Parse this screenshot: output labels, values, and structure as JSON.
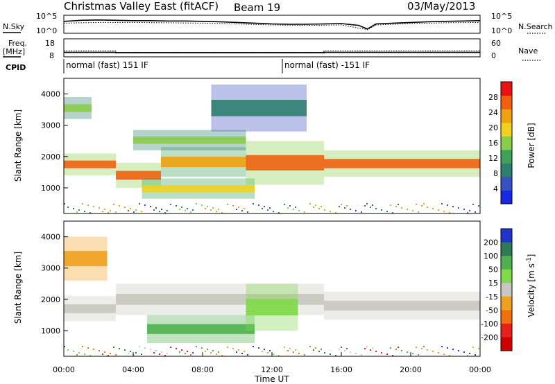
{
  "header": {
    "station": "Christmas Valley East (fitACF)",
    "beam": "Beam 19",
    "date": "03/May/2013"
  },
  "chart_data": [
    {
      "type": "line",
      "panel": "noise",
      "left_label": "N.Sky",
      "right_label": "N.Search",
      "left_ticks": [
        "10^5",
        "10^0"
      ],
      "right_ticks": [
        "10^5",
        "10^0"
      ],
      "series": [
        {
          "name": "N.Sky",
          "style": "solid",
          "x": [
            0,
            1,
            2,
            3,
            4,
            5,
            6,
            7,
            8,
            9,
            10,
            11,
            12,
            13,
            14,
            15,
            16,
            17,
            17.5,
            18,
            19,
            20,
            21,
            22,
            23,
            24
          ],
          "y": [
            3.3,
            3.6,
            3.7,
            3.6,
            3.5,
            3.5,
            3.4,
            3.4,
            3.3,
            3.2,
            3.0,
            2.8,
            2.6,
            2.5,
            2.5,
            2.6,
            2.7,
            2.2,
            1.2,
            2.6,
            2.8,
            3.0,
            3.2,
            3.3,
            3.4,
            3.5
          ]
        },
        {
          "name": "N.Search",
          "style": "dotted",
          "x": [
            0,
            2,
            4,
            6,
            8,
            10,
            12,
            14,
            16,
            17.5,
            18,
            20,
            22,
            24
          ],
          "y": [
            2.8,
            3.0,
            3.0,
            2.9,
            2.8,
            2.6,
            2.3,
            2.2,
            2.3,
            1.0,
            2.3,
            2.7,
            2.9,
            3.0
          ]
        }
      ]
    },
    {
      "type": "line",
      "panel": "frequency",
      "left_label": "Freq. [MHz]",
      "right_label": "Nave",
      "left_ticks": [
        18,
        8
      ],
      "right_ticks": [
        60,
        0
      ],
      "series": [
        {
          "name": "Freq",
          "style": "solid",
          "x": [
            0,
            3.0,
            3.0,
            15.0,
            15.0,
            24.0
          ],
          "y": [
            10.5,
            10.5,
            10.3,
            10.3,
            10.5,
            10.5
          ]
        },
        {
          "name": "Nave",
          "style": "dotted",
          "x": [
            0,
            3.0,
            3.0,
            15.0,
            15.0,
            24.0
          ],
          "y": [
            20,
            20,
            15,
            15,
            20,
            20
          ]
        }
      ]
    },
    {
      "type": "table",
      "panel": "cpid",
      "label": "CPID",
      "segments": [
        {
          "text": "normal (fast) 151 IF",
          "start": 0.0,
          "end": 12.6
        },
        {
          "text": "normal (fast) -151 IF",
          "start": 12.6,
          "end": 24.0
        }
      ]
    },
    {
      "type": "heatmap",
      "panel": "power",
      "ylabel": "Slant Range [km]",
      "ylim": [
        180,
        4500
      ],
      "yticks": [
        1000,
        2000,
        3000,
        4000
      ],
      "colorbar": {
        "label": "Power [dB]",
        "range": [
          0,
          32
        ],
        "ticks": [
          4,
          8,
          12,
          16,
          20,
          24,
          28
        ]
      },
      "echo_bands": [
        {
          "t": [
            0,
            3.0
          ],
          "r": [
            1400,
            2100
          ],
          "p": 28
        },
        {
          "t": [
            3.0,
            5.6
          ],
          "r": [
            1000,
            1800
          ],
          "p": 28
        },
        {
          "t": [
            5.6,
            10.5
          ],
          "r": [
            1350,
            2300
          ],
          "p": 22
        },
        {
          "t": [
            4.5,
            11.0
          ],
          "r": [
            650,
            1300
          ],
          "p": 20
        },
        {
          "t": [
            4.0,
            10.5
          ],
          "r": [
            2200,
            2850
          ],
          "p": 15
        },
        {
          "t": [
            10.5,
            15.0
          ],
          "r": [
            1100,
            2500
          ],
          "p": 27
        },
        {
          "t": [
            15.0,
            24.0
          ],
          "r": [
            1350,
            2200
          ],
          "p": 26
        },
        {
          "t": [
            0,
            1.6
          ],
          "r": [
            3200,
            3900
          ],
          "p": 16
        },
        {
          "t": [
            8.5,
            14.0
          ],
          "r": [
            2800,
            4300
          ],
          "p": 8
        }
      ]
    },
    {
      "type": "heatmap",
      "panel": "velocity",
      "ylabel": "Slant Range [km]",
      "xlabel": "Time UT",
      "ylim": [
        180,
        4500
      ],
      "yticks": [
        1000,
        2000,
        3000,
        4000
      ],
      "xticks": [
        "00:00",
        "04:00",
        "08:00",
        "12:00",
        "16:00",
        "20:00",
        "00:00"
      ],
      "xlim": [
        0,
        24
      ],
      "colorbar": {
        "label": "Velocity [m s^-1]",
        "ticks": [
          200,
          100,
          50,
          15,
          -15,
          -50,
          -100,
          -200
        ],
        "colors": [
          "#2233cc",
          "#2f7a55",
          "#4fb04f",
          "#80d84a",
          "#c8c8c0",
          "#f0a020",
          "#f07010",
          "#e8201c",
          "#d00000"
        ]
      },
      "echo_bands": [
        {
          "t": [
            0,
            3.0
          ],
          "r": [
            1300,
            2100
          ],
          "v": 0
        },
        {
          "t": [
            3.0,
            15.0
          ],
          "r": [
            1500,
            2500
          ],
          "v": 0
        },
        {
          "t": [
            4.8,
            11.0
          ],
          "r": [
            600,
            1500
          ],
          "v": 70
        },
        {
          "t": [
            10.5,
            13.5
          ],
          "r": [
            1000,
            2500
          ],
          "v": 40
        },
        {
          "t": [
            15.0,
            24.0
          ],
          "r": [
            1350,
            2250
          ],
          "v": 0
        },
        {
          "t": [
            0,
            2.5
          ],
          "r": [
            2600,
            4000
          ],
          "v": -40
        }
      ]
    }
  ]
}
